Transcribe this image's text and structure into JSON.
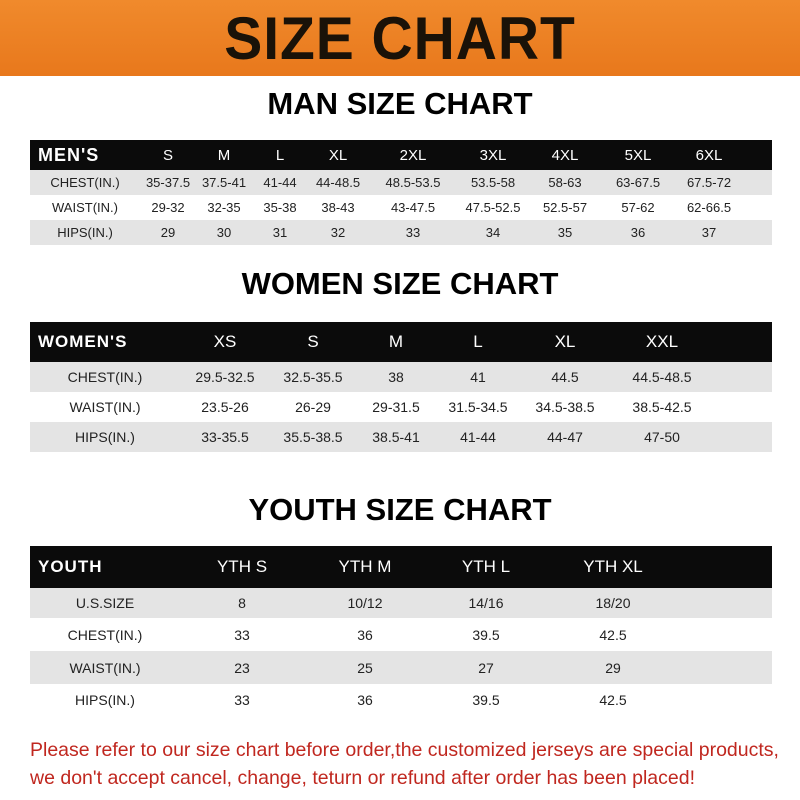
{
  "banner": {
    "title": "SIZE CHART"
  },
  "men": {
    "title": "MAN SIZE CHART",
    "header": [
      "MEN'S",
      "S",
      "M",
      "L",
      "XL",
      "2XL",
      "3XL",
      "4XL",
      "5XL",
      "6XL"
    ],
    "rows": [
      [
        "CHEST(IN.)",
        "35-37.5",
        "37.5-41",
        "41-44",
        "44-48.5",
        "48.5-53.5",
        "53.5-58",
        "58-63",
        "63-67.5",
        "67.5-72"
      ],
      [
        "WAIST(IN.)",
        "29-32",
        "32-35",
        "35-38",
        "38-43",
        "43-47.5",
        "47.5-52.5",
        "52.5-57",
        "57-62",
        "62-66.5"
      ],
      [
        "HIPS(IN.)",
        "29",
        "30",
        "31",
        "32",
        "33",
        "34",
        "35",
        "36",
        "37"
      ]
    ]
  },
  "women": {
    "title": "WOMEN SIZE CHART",
    "header": [
      "WOMEN'S",
      "XS",
      "S",
      "M",
      "L",
      "XL",
      "XXL"
    ],
    "rows": [
      [
        "CHEST(IN.)",
        "29.5-32.5",
        "32.5-35.5",
        "38",
        "41",
        "44.5",
        "44.5-48.5"
      ],
      [
        "WAIST(IN.)",
        "23.5-26",
        "26-29",
        "29-31.5",
        "31.5-34.5",
        "34.5-38.5",
        "38.5-42.5"
      ],
      [
        "HIPS(IN.)",
        "33-35.5",
        "35.5-38.5",
        "38.5-41",
        "41-44",
        "44-47",
        "47-50"
      ]
    ]
  },
  "youth": {
    "title": "YOUTH SIZE CHART",
    "header": [
      "YOUTH",
      "YTH S",
      "YTH M",
      "YTH L",
      "YTH XL"
    ],
    "rows": [
      [
        "U.S.SIZE",
        "8",
        "10/12",
        "14/16",
        "18/20"
      ],
      [
        "CHEST(IN.)",
        "33",
        "36",
        "39.5",
        "42.5"
      ],
      [
        "WAIST(IN.)",
        "23",
        "25",
        "27",
        "29"
      ],
      [
        "HIPS(IN.)",
        "33",
        "36",
        "39.5",
        "42.5"
      ]
    ]
  },
  "footer": {
    "line1": "Please refer to our size chart before order,the customized jerseys are special products,",
    "line2": "we don't accept cancel, change, teturn or refund after order has been placed!"
  },
  "colors": {
    "banner": "#ee8228",
    "header_row": "#0b0b0b",
    "stripe": "#e4e4e4",
    "notice": "#c0271f"
  }
}
